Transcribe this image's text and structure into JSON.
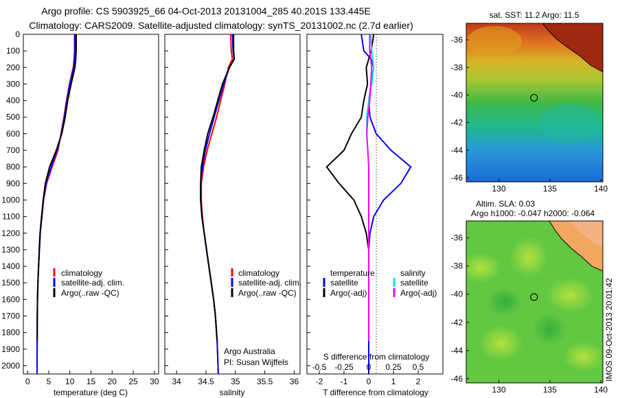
{
  "figure": {
    "title_line1": "Argo profile: CS 5903925_66 04-Oct-2013 20131004_285 40.201S 133.445E",
    "title_line2": "Climatology: CARS2009. Satellite-adjusted climatology: synTS_20131002.nc (2.7d earlier)",
    "watermark": "IMOS 09-Oct-2013 20:01:42",
    "credit_line1": "Argo Australia",
    "credit_line2": "PI: Susan Wijffels"
  },
  "colors": {
    "climatology": "#ff0000",
    "satellite": "#0000ff",
    "argo": "#000000",
    "sal_satellite": "#00e5e5",
    "sal_argo": "#ff00ff",
    "land": "#f4b183"
  },
  "chart_data": [
    {
      "type": "line",
      "name": "temperature-profile",
      "xlabel": "temperature (deg C)",
      "ylabel": "",
      "xlim": [
        -1,
        31
      ],
      "ylim": [
        2050,
        0
      ],
      "xticks": [
        "0",
        "5",
        "10",
        "15",
        "20",
        "25",
        "30"
      ],
      "yticks": [
        "0",
        "100",
        "200",
        "300",
        "400",
        "500",
        "600",
        "700",
        "800",
        "900",
        "1000",
        "1100",
        "1200",
        "1300",
        "1400",
        "1500",
        "1600",
        "1700",
        "1800",
        "1900",
        "2000"
      ],
      "legend": [
        "climatology",
        "satellite-adj. clim.",
        "Argo(..raw -QC)"
      ],
      "legend_position": "lower-center",
      "series": [
        {
          "name": "climatology",
          "color": "#ff0000",
          "x": [
            11.1,
            11.1,
            11.0,
            10.8,
            9.9,
            9.2,
            8.6,
            7.9,
            7.2,
            5.8,
            4.5,
            3.8,
            3.4,
            3.0,
            2.8,
            2.6,
            2.45,
            2.35,
            2.3,
            2.27,
            2.25
          ],
          "y": [
            0,
            100,
            150,
            200,
            300,
            400,
            500,
            600,
            700,
            800,
            900,
            1000,
            1100,
            1200,
            1300,
            1400,
            1500,
            1600,
            1700,
            1850,
            2050
          ]
        },
        {
          "name": "satellite-adj. clim.",
          "color": "#0000ff",
          "x": [
            11.2,
            11.2,
            11.1,
            10.9,
            10.0,
            9.3,
            8.7,
            8.0,
            7.0,
            5.6,
            4.4,
            3.75,
            3.35,
            3.0,
            2.8,
            2.6,
            2.45,
            2.35,
            2.3,
            2.27,
            2.25
          ],
          "y": [
            0,
            100,
            150,
            200,
            300,
            400,
            500,
            600,
            700,
            800,
            900,
            1000,
            1100,
            1200,
            1300,
            1400,
            1500,
            1600,
            1700,
            1850,
            2050
          ]
        },
        {
          "name": "Argo(..raw -QC)",
          "color": "#000000",
          "x": [
            11.5,
            11.5,
            11.4,
            11.2,
            10.3,
            9.5,
            8.9,
            8.1,
            6.8,
            5.2,
            4.2,
            3.7,
            3.3,
            2.95,
            2.75,
            2.6,
            2.45,
            2.35,
            2.3,
            2.27
          ],
          "y": [
            0,
            100,
            150,
            200,
            300,
            400,
            500,
            600,
            700,
            800,
            900,
            1000,
            1100,
            1200,
            1300,
            1400,
            1500,
            1600,
            1700,
            1850
          ]
        }
      ]
    },
    {
      "type": "line",
      "name": "salinity-profile",
      "xlabel": "salinity",
      "xlim": [
        33.8,
        36.1
      ],
      "ylim": [
        2050,
        0
      ],
      "xticks": [
        "34",
        "34.5",
        "35",
        "35.5",
        "36"
      ],
      "legend": [
        "climatology",
        "satellite-adj. clim.",
        "Argo(..raw -QC)"
      ],
      "legend_position": "lower-center",
      "series": [
        {
          "name": "climatology",
          "color": "#ff0000",
          "x": [
            34.92,
            34.93,
            34.95,
            34.88,
            34.82,
            34.75,
            34.68,
            34.6,
            34.52,
            34.46,
            34.42,
            34.42,
            34.44,
            34.47,
            34.51,
            34.55,
            34.59,
            34.63,
            34.66,
            34.69,
            34.71
          ],
          "y": [
            0,
            100,
            150,
            200,
            300,
            400,
            500,
            600,
            700,
            800,
            900,
            1000,
            1100,
            1200,
            1300,
            1400,
            1500,
            1600,
            1700,
            1850,
            2050
          ]
        },
        {
          "name": "satellite-adj. clim.",
          "color": "#0000ff",
          "x": [
            34.95,
            34.96,
            34.98,
            34.9,
            34.8,
            34.72,
            34.64,
            34.56,
            34.49,
            34.44,
            34.41,
            34.41,
            34.43,
            34.47,
            34.51,
            34.55,
            34.59,
            34.63,
            34.66,
            34.69,
            34.71
          ],
          "y": [
            0,
            100,
            150,
            200,
            300,
            400,
            500,
            600,
            700,
            800,
            900,
            1000,
            1100,
            1200,
            1300,
            1400,
            1500,
            1600,
            1700,
            1850,
            2050
          ]
        },
        {
          "name": "Argo(..raw -QC)",
          "color": "#000000",
          "x": [
            34.97,
            34.97,
            34.98,
            34.9,
            34.78,
            34.7,
            34.62,
            34.53,
            34.47,
            34.42,
            34.41,
            34.41,
            34.43,
            34.47,
            34.51,
            34.55,
            34.59,
            34.63,
            34.66,
            34.69
          ],
          "y": [
            0,
            100,
            150,
            200,
            300,
            400,
            500,
            600,
            700,
            800,
            900,
            1000,
            1100,
            1200,
            1300,
            1400,
            1500,
            1600,
            1700,
            1850
          ]
        }
      ]
    },
    {
      "type": "line",
      "name": "difference-profile",
      "xlabel": "T difference from climatology",
      "xlabel_top": "S difference from climatology",
      "xlim": [
        -2.5,
        3.0
      ],
      "ylim": [
        2050,
        0
      ],
      "xticks": [
        "-2",
        "-1",
        "0",
        "1",
        "2"
      ],
      "xticks_top": [
        "-0.5",
        "-0.25",
        "0",
        "0.25",
        "0.5"
      ],
      "legend_left_title": "temperature",
      "legend_left": [
        "satellite",
        "Argo(-adj)"
      ],
      "legend_right_title": "salinity",
      "legend_right": [
        "satellite",
        "Argo(-adj)"
      ],
      "series": [
        {
          "name": "temperature satellite",
          "color": "#0000ff",
          "x": [
            -0.3,
            -0.2,
            0.1,
            0.2,
            0.1,
            0.0,
            0.05,
            0.3,
            0.9,
            1.7,
            1.3,
            0.6,
            0.2,
            0.05,
            0.0,
            0.0,
            0.0,
            0.0,
            0.0,
            0.0,
            0.0
          ],
          "y": [
            0,
            100,
            150,
            200,
            300,
            400,
            500,
            600,
            700,
            800,
            900,
            1000,
            1100,
            1200,
            1300,
            1400,
            1500,
            1600,
            1700,
            1850,
            2050
          ]
        },
        {
          "name": "temperature Argo(-adj)",
          "color": "#000000",
          "x": [
            0.2,
            0.1,
            0.0,
            -0.1,
            -0.05,
            -0.2,
            -0.3,
            -0.7,
            -1.0,
            -1.7,
            -1.2,
            -0.6,
            -0.3,
            -0.1,
            0.0,
            0.0,
            0.0,
            0.0,
            0.0,
            0.0
          ],
          "y": [
            0,
            100,
            150,
            200,
            300,
            400,
            500,
            600,
            700,
            800,
            900,
            1000,
            1100,
            1200,
            1300,
            1400,
            1500,
            1600,
            1700,
            1850
          ]
        },
        {
          "name": "salinity satellite",
          "color": "#00e5e5",
          "x": [
            0.02,
            0.03,
            0.04,
            0.05,
            0.03,
            0.0,
            -0.02,
            -0.02,
            -0.01,
            0.0,
            0.0,
            0.0,
            0.0,
            0.0,
            0.0,
            0.0,
            0.0,
            0.0,
            0.0,
            0.0
          ],
          "y": [
            0,
            100,
            150,
            200,
            300,
            400,
            500,
            600,
            700,
            800,
            900,
            1000,
            1100,
            1200,
            1300,
            1400,
            1500,
            1600,
            1700,
            1850
          ]
        },
        {
          "name": "salinity Argo(-adj)",
          "color": "#ff00ff",
          "x": [
            0.01,
            0.01,
            0.02,
            0.03,
            0.02,
            0.01,
            -0.01,
            -0.02,
            -0.01,
            0.0,
            0.0,
            0.0,
            0.0,
            0.0,
            0.0,
            0.0,
            0.0,
            0.0,
            0.0,
            0.0
          ],
          "y": [
            0,
            100,
            150,
            200,
            300,
            400,
            500,
            600,
            700,
            800,
            900,
            1000,
            1100,
            1200,
            1300,
            1400,
            1500,
            1600,
            1700,
            1850
          ]
        }
      ]
    },
    {
      "type": "heatmap",
      "name": "sst-map",
      "title": "sat. SST: 11.2  Argo: 11.5",
      "xlim": [
        126.8,
        140.2
      ],
      "ylim": [
        -46.3,
        -34.8
      ],
      "xticks": [
        "130",
        "135",
        "140"
      ],
      "yticks": [
        "-36",
        "-38",
        "-40",
        "-42",
        "-44",
        "-46"
      ],
      "marker": {
        "x": 133.445,
        "y": -40.201
      }
    },
    {
      "type": "heatmap",
      "name": "sla-map",
      "title": "Altim. SLA: 0.03",
      "subtitle": "Argo h1000: -0.047  h2000: -0.064",
      "xlim": [
        126.8,
        140.2
      ],
      "ylim": [
        -46.3,
        -34.8
      ],
      "xticks": [
        "130",
        "135",
        "140"
      ],
      "yticks": [
        "-36",
        "-38",
        "-40",
        "-42",
        "-44",
        "-46"
      ],
      "marker": {
        "x": 133.445,
        "y": -40.201
      }
    }
  ]
}
